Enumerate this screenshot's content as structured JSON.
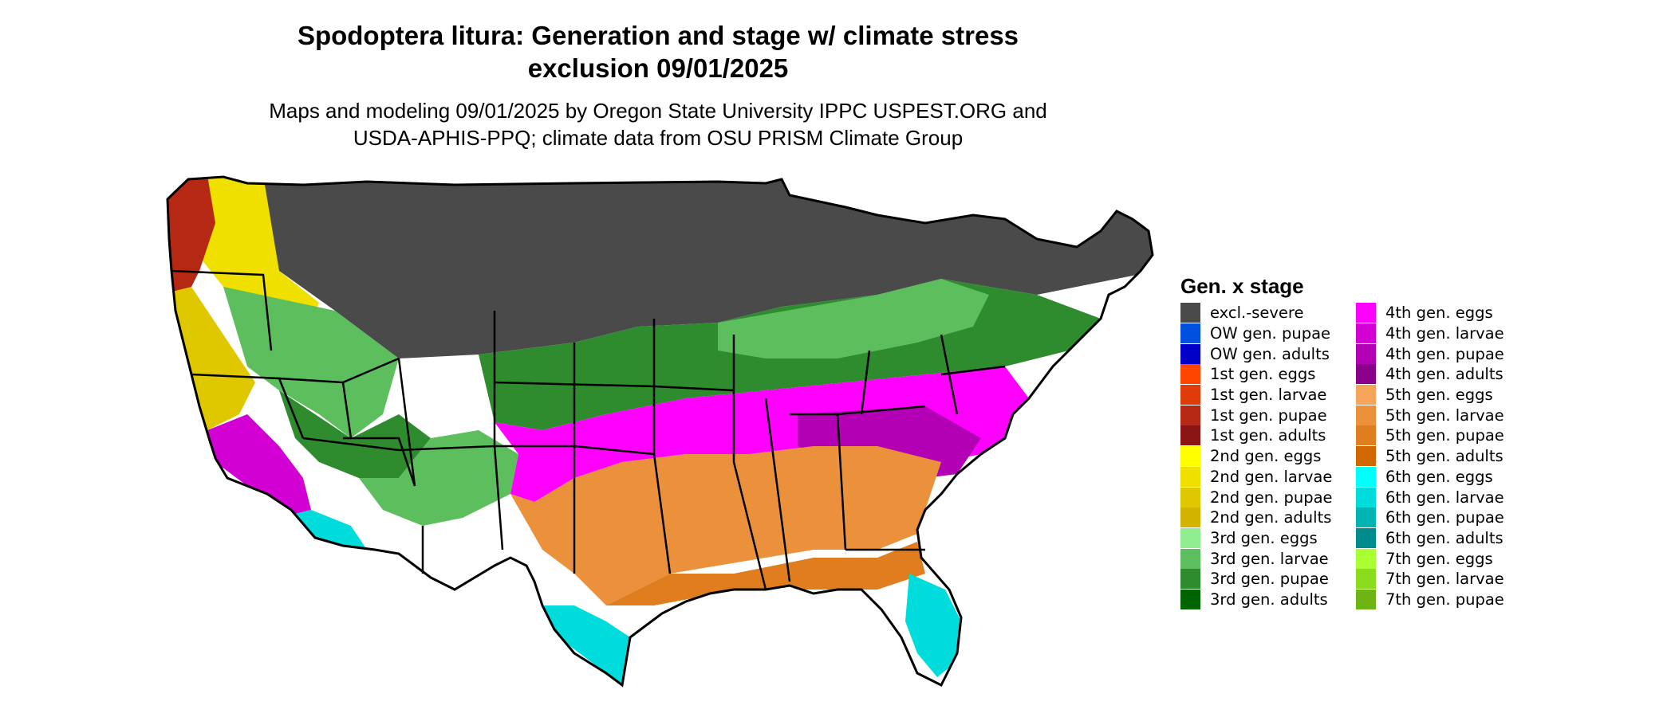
{
  "title": {
    "line1": "Spodoptera litura: Generation and stage w/ climate stress",
    "line2": "exclusion 09/01/2025"
  },
  "subtitle": {
    "line1": "Maps and modeling 09/01/2025 by Oregon State University IPPC USPEST.ORG and",
    "line2": "USDA-APHIS-PPQ; climate data from OSU PRISM Climate Group"
  },
  "legend": {
    "title": "Gen. x stage",
    "col1": [
      {
        "label": "excl.-severe",
        "color": "#4a4a4a"
      },
      {
        "label": "OW gen. pupae",
        "color": "#0050e0"
      },
      {
        "label": "OW gen. adults",
        "color": "#0000c8"
      },
      {
        "label": "1st gen. eggs",
        "color": "#ff4500"
      },
      {
        "label": "1st gen. larvae",
        "color": "#e03c0a"
      },
      {
        "label": "1st gen. pupae",
        "color": "#b42814"
      },
      {
        "label": "1st gen. adults",
        "color": "#8b1414"
      },
      {
        "label": "2nd gen. eggs",
        "color": "#ffff00"
      },
      {
        "label": "2nd gen. larvae",
        "color": "#f0e000"
      },
      {
        "label": "2nd gen. pupae",
        "color": "#e0c800"
      },
      {
        "label": "2nd gen. adults",
        "color": "#d2b400"
      },
      {
        "label": "3rd gen. eggs",
        "color": "#90ee90"
      },
      {
        "label": "3rd gen. larvae",
        "color": "#5cbe5c"
      },
      {
        "label": "3rd gen. pupae",
        "color": "#2e8b2e"
      },
      {
        "label": "3rd gen. adults",
        "color": "#006400"
      }
    ],
    "col2": [
      {
        "label": "4th gen. eggs",
        "color": "#ff00ff"
      },
      {
        "label": "4th gen. larvae",
        "color": "#d200d2"
      },
      {
        "label": "4th gen. pupae",
        "color": "#b400b4"
      },
      {
        "label": "4th gen. adults",
        "color": "#8b008b"
      },
      {
        "label": "5th gen. eggs",
        "color": "#f5a55a"
      },
      {
        "label": "5th gen. larvae",
        "color": "#eb913c"
      },
      {
        "label": "5th gen. pupae",
        "color": "#e07d1e"
      },
      {
        "label": "5th gen. adults",
        "color": "#d26900"
      },
      {
        "label": "6th gen. eggs",
        "color": "#00ffff"
      },
      {
        "label": "6th gen. larvae",
        "color": "#00dcdc"
      },
      {
        "label": "6th gen. pupae",
        "color": "#00b4b4"
      },
      {
        "label": "6th gen. adults",
        "color": "#008c8c"
      },
      {
        "label": "7th gen. eggs",
        "color": "#aaff32"
      },
      {
        "label": "7th gen. larvae",
        "color": "#8cdc1e"
      },
      {
        "label": "7th gen. pupae",
        "color": "#6eb414"
      }
    ]
  }
}
